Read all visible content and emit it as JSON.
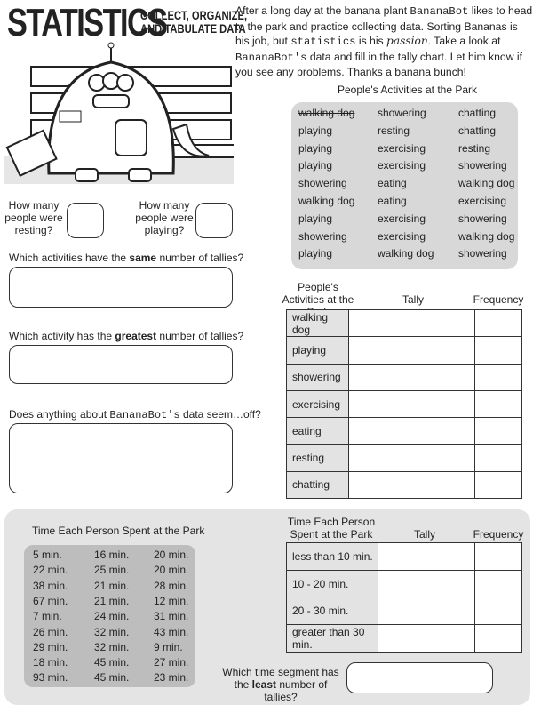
{
  "header": {
    "title": "STATISTICS",
    "subtitle_line1": "COLLECT, ORGANIZE,",
    "subtitle_line2": "AND TABULATE DATA"
  },
  "intro": {
    "p1": "After a long day at the banana plant ",
    "bot": "BananaBot",
    "p2": " likes to head to the park and practice collecting data. Sorting Bananas is his job, but ",
    "stat": "statistics",
    "p3": " is his ",
    "passion": "passion",
    "p4": ". Take a look at ",
    "bot2": "BananaBot's",
    "p5": " data and fill in the tally chart. Let him know if you see any problems. Thanks a banana bunch!"
  },
  "questions": {
    "resting": "How many people were resting?",
    "playing": "How many people were playing?",
    "same": [
      "Which activities have the ",
      "same",
      " number of tallies?"
    ],
    "greatest": [
      "Which activity has the ",
      "greatest",
      " number of tallies?"
    ],
    "off": [
      "Does anything about ",
      "BananaBot's",
      " data seem…off?"
    ],
    "least": [
      "Which time segment has the ",
      "least",
      " number of tallies?"
    ]
  },
  "activities": {
    "title": "People's Activities at the Park",
    "columns": [
      [
        "walking dog",
        "playing",
        "playing",
        "playing",
        "showering",
        "walking dog",
        "playing",
        "showering",
        "playing"
      ],
      [
        "showering",
        "resting",
        "exercising",
        "exercising",
        "eating",
        "eating",
        "exercising",
        "exercising",
        "walking dog"
      ],
      [
        "chatting",
        "chatting",
        "resting",
        "showering",
        "walking dog",
        "exercising",
        "showering",
        "walking dog",
        "showering"
      ]
    ],
    "crossed_out": "walking dog"
  },
  "tally1": {
    "header": "People's Activities at the Park",
    "tally": "Tally",
    "frequency": "Frequency",
    "rows": [
      "walking dog",
      "playing",
      "showering",
      "exercising",
      "eating",
      "resting",
      "chatting"
    ]
  },
  "times": {
    "title": "Time Each Person Spent at the Park",
    "columns": [
      [
        "5 min.",
        "22 min.",
        "38 min.",
        "67 min.",
        "7 min.",
        "26 min.",
        "29 min.",
        "18 min.",
        "93 min."
      ],
      [
        "16 min.",
        "25 min.",
        "21 min.",
        "21 min.",
        "24 min.",
        "32 min.",
        "32 min.",
        "45 min.",
        "45 min."
      ],
      [
        "20 min.",
        "20 min.",
        "28 min.",
        "12 min.",
        "31 min.",
        "43 min.",
        "9 min.",
        "27 min.",
        "23 min."
      ]
    ]
  },
  "tally2": {
    "header": "Time Each Person Spent at the Park",
    "tally": "Tally",
    "frequency": "Frequency",
    "rows": [
      "less than 10 min.",
      "10 - 20 min.",
      "20 - 30 min.",
      "greater than 30 min."
    ]
  }
}
